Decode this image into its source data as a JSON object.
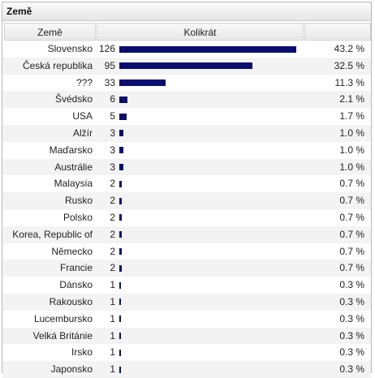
{
  "title": "Země",
  "headers": {
    "country": "Země",
    "count": "Kolikrát",
    "pct": ""
  },
  "max_count": 126,
  "rows": [
    {
      "country": "Slovensko",
      "count": 126,
      "pct": "43.2 %"
    },
    {
      "country": "Česká republika",
      "count": 95,
      "pct": "32.5 %"
    },
    {
      "country": "???",
      "count": 33,
      "pct": "11.3 %"
    },
    {
      "country": "Švédsko",
      "count": 6,
      "pct": "2.1 %"
    },
    {
      "country": "USA",
      "count": 5,
      "pct": "1.7 %"
    },
    {
      "country": "Alžír",
      "count": 3,
      "pct": "1.0 %"
    },
    {
      "country": "Maďarsko",
      "count": 3,
      "pct": "1.0 %"
    },
    {
      "country": "Austrálie",
      "count": 3,
      "pct": "1.0 %"
    },
    {
      "country": "Malaysia",
      "count": 2,
      "pct": "0.7 %"
    },
    {
      "country": "Rusko",
      "count": 2,
      "pct": "0.7 %"
    },
    {
      "country": "Polsko",
      "count": 2,
      "pct": "0.7 %"
    },
    {
      "country": "Korea, Republic of",
      "count": 2,
      "pct": "0.7 %"
    },
    {
      "country": "Německo",
      "count": 2,
      "pct": "0.7 %"
    },
    {
      "country": "Francie",
      "count": 2,
      "pct": "0.7 %"
    },
    {
      "country": "Dánsko",
      "count": 1,
      "pct": "0.3 %"
    },
    {
      "country": "Rakousko",
      "count": 1,
      "pct": "0.3 %"
    },
    {
      "country": "Lucembursko",
      "count": 1,
      "pct": "0.3 %"
    },
    {
      "country": "Velká Británie",
      "count": 1,
      "pct": "0.3 %"
    },
    {
      "country": "Irsko",
      "count": 1,
      "pct": "0.3 %"
    },
    {
      "country": "Japonsko",
      "count": 1,
      "pct": "0.3 %"
    }
  ],
  "colors": {
    "bar": "#0a0f6e"
  }
}
